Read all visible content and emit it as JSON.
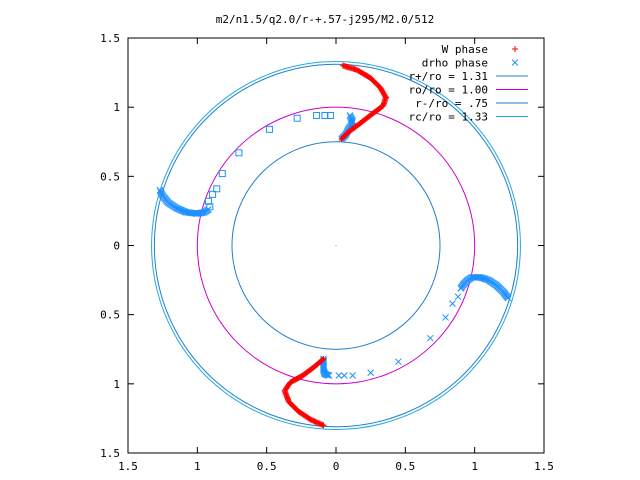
{
  "chart_data": {
    "type": "scatter",
    "title": "m2/n1.5/q2.0/r-+.57-j295/M2.0/512",
    "xlabel": "",
    "ylabel": "",
    "xlim": [
      -1.5,
      1.5
    ],
    "ylim": [
      -1.5,
      1.5
    ],
    "x_ticks": [
      -1.5,
      -1,
      -0.5,
      0,
      0.5,
      1,
      1.5
    ],
    "y_ticks": [
      -1.5,
      -1,
      -0.5,
      0,
      0.5,
      1,
      1.5
    ],
    "x_tick_labels": [
      "1.5",
      "1",
      "0.5",
      "0",
      "0.5",
      "1",
      "1.5"
    ],
    "y_tick_labels": [
      "1.5",
      "1",
      "0.5",
      "0",
      "0.5",
      "1",
      "1.5"
    ],
    "grid": false,
    "legend_position": "top-right",
    "legend": [
      {
        "label": "W phase",
        "marker": "plus",
        "color": "#ff0000"
      },
      {
        "label": "drho phase",
        "marker": "cross",
        "color": "#1e90ff"
      },
      {
        "label": "r+/ro = 1.31",
        "line": true,
        "color": "#1e7fd0"
      },
      {
        "label": "ro/ro = 1.00",
        "line": true,
        "color": "#cc00cc"
      },
      {
        "label": "r-/ro = .75",
        "line": true,
        "color": "#1e7fd0"
      },
      {
        "label": "rc/ro = 1.33",
        "line": true,
        "color": "#22aadd"
      }
    ],
    "circles": [
      {
        "name": "r+/ro = 1.31",
        "radius": 1.31,
        "color": "#1e7fd0"
      },
      {
        "name": "ro/ro = 1.00",
        "radius": 1.0,
        "color": "#cc00cc"
      },
      {
        "name": "r-/ro = .75",
        "radius": 0.75,
        "color": "#1e7fd0"
      },
      {
        "name": "rc/ro = 1.33",
        "radius": 1.33,
        "color": "#22aadd"
      }
    ],
    "w_phase_arms": [
      {
        "points": [
          [
            0.05,
            1.3
          ],
          [
            0.15,
            1.27
          ],
          [
            0.25,
            1.21
          ],
          [
            0.32,
            1.14
          ],
          [
            0.36,
            1.07
          ],
          [
            0.34,
            1.01
          ],
          [
            0.26,
            0.95
          ],
          [
            0.17,
            0.88
          ],
          [
            0.09,
            0.82
          ],
          [
            0.04,
            0.77
          ]
        ]
      },
      {
        "points": [
          [
            -0.09,
            -1.3
          ],
          [
            -0.18,
            -1.26
          ],
          [
            -0.27,
            -1.2
          ],
          [
            -0.34,
            -1.13
          ],
          [
            -0.37,
            -1.05
          ],
          [
            -0.33,
            -0.99
          ],
          [
            -0.24,
            -0.94
          ],
          [
            -0.16,
            -0.88
          ],
          [
            -0.09,
            -0.82
          ]
        ]
      }
    ],
    "drho_phase_arms": [
      {
        "points": [
          [
            0.04,
            0.77
          ],
          [
            0.07,
            0.8
          ],
          [
            0.09,
            0.84
          ],
          [
            0.11,
            0.87
          ],
          [
            0.12,
            0.9
          ],
          [
            0.1,
            0.94
          ]
        ]
      },
      {
        "points": [
          [
            -0.09,
            -0.82
          ],
          [
            -0.09,
            -0.86
          ],
          [
            -0.09,
            -0.9
          ],
          [
            -0.08,
            -0.93
          ],
          [
            -0.05,
            -0.94
          ]
        ]
      },
      {
        "points": [
          [
            -1.27,
            0.4
          ],
          [
            -1.25,
            0.36
          ],
          [
            -1.21,
            0.31
          ],
          [
            -1.15,
            0.27
          ],
          [
            -1.08,
            0.24
          ],
          [
            -1.0,
            0.23
          ],
          [
            -0.95,
            0.24
          ],
          [
            -0.92,
            0.26
          ]
        ]
      },
      {
        "points": [
          [
            1.24,
            -0.38
          ],
          [
            1.21,
            -0.34
          ],
          [
            1.16,
            -0.29
          ],
          [
            1.1,
            -0.25
          ],
          [
            1.04,
            -0.23
          ],
          [
            0.98,
            -0.23
          ],
          [
            0.95,
            -0.25
          ],
          [
            0.92,
            -0.28
          ],
          [
            0.9,
            -0.31
          ]
        ]
      }
    ],
    "drho_square_points": [
      [
        -0.91,
        0.28
      ],
      [
        -0.92,
        0.32
      ],
      [
        -0.89,
        0.37
      ],
      [
        -0.86,
        0.41
      ],
      [
        -0.82,
        0.52
      ],
      [
        -0.7,
        0.67
      ],
      [
        -0.48,
        0.84
      ],
      [
        -0.28,
        0.92
      ],
      [
        -0.14,
        0.94
      ],
      [
        -0.08,
        0.94
      ],
      [
        -0.04,
        0.94
      ]
    ],
    "drho_cross_points": [
      [
        0.88,
        -0.37
      ],
      [
        0.84,
        -0.42
      ],
      [
        0.79,
        -0.52
      ],
      [
        0.68,
        -0.67
      ],
      [
        0.45,
        -0.84
      ],
      [
        0.25,
        -0.92
      ],
      [
        0.12,
        -0.94
      ],
      [
        0.06,
        -0.94
      ],
      [
        0.02,
        -0.94
      ]
    ]
  }
}
